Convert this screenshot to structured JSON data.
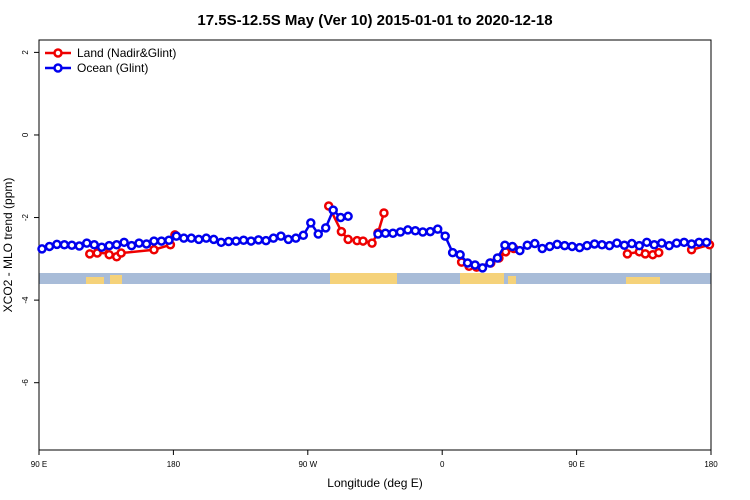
{
  "chart_data": {
    "type": "line",
    "title": "17.5S-12.5S May (Ver 10)   2015-01-01 to 2020-12-18",
    "x_label": "Longitude (deg E)",
    "y_label": "XCO2 - MLO trend (ppm)",
    "xlim": [
      90,
      540
    ],
    "ylim": [
      -7.63,
      2.3
    ],
    "xticks": [
      {
        "value": 90,
        "label": "90 E"
      },
      180,
      {
        "value": 270,
        "label": "90 W"
      },
      {
        "value": 360,
        "label": "0"
      },
      {
        "value": 450,
        "label": "90 E"
      },
      {
        "value": 540,
        "label": "180"
      }
    ],
    "yticks": [
      -6,
      -4,
      -2,
      0,
      2
    ],
    "grid": false,
    "legend": "top-left",
    "series": [
      {
        "name": "Land (Nadir&Glint)",
        "color": "#ee0000",
        "x": [
          124,
          129,
          133,
          137,
          142,
          145,
          167,
          178,
          181,
          230,
          284,
          292.5,
          297,
          303,
          307,
          313,
          317,
          321,
          340,
          373,
          378,
          383,
          392.5,
          398,
          402.5,
          408,
          450,
          484,
          492,
          496,
          501,
          505,
          515,
          527,
          539
        ],
        "values": [
          -2.88,
          -2.86,
          -2.78,
          -2.9,
          -2.95,
          -2.86,
          -2.78,
          -2.66,
          -2.42,
          null,
          -1.72,
          -2.34,
          -2.53,
          -2.56,
          -2.57,
          -2.62,
          -2.37,
          -1.89,
          null,
          -3.08,
          -3.18,
          -3.2,
          -3.1,
          -2.98,
          -2.83,
          -2.75,
          null,
          -2.88,
          -2.83,
          -2.88,
          -2.9,
          -2.85,
          null,
          -2.78,
          -2.66
        ]
      },
      {
        "name": "Ocean (Glint)",
        "color": "#0000ee",
        "x": [
          92,
          97,
          102,
          107,
          112,
          117,
          122,
          127,
          132,
          137,
          142,
          147,
          152,
          157,
          162,
          167,
          172,
          177,
          182,
          187,
          192,
          197,
          202,
          207,
          212,
          217,
          222,
          227,
          232,
          237,
          242,
          247,
          252,
          257,
          262,
          267,
          272,
          277,
          282,
          287,
          292,
          297,
          307,
          317,
          322,
          327,
          332,
          337,
          342,
          347,
          352,
          357,
          362,
          367,
          372,
          377,
          382,
          387,
          392,
          397,
          402,
          407,
          412,
          417,
          422,
          427,
          432,
          437,
          442,
          447,
          452,
          457,
          462,
          467,
          472,
          477,
          482,
          487,
          492,
          497,
          502,
          507,
          512,
          517,
          522,
          527,
          532,
          537
        ],
        "values": [
          -2.76,
          -2.7,
          -2.65,
          -2.66,
          -2.67,
          -2.69,
          -2.62,
          -2.66,
          -2.72,
          -2.68,
          -2.66,
          -2.6,
          -2.68,
          -2.62,
          -2.64,
          -2.57,
          -2.57,
          -2.55,
          -2.45,
          -2.5,
          -2.5,
          -2.53,
          -2.5,
          -2.53,
          -2.6,
          -2.58,
          -2.57,
          -2.55,
          -2.57,
          -2.54,
          -2.56,
          -2.5,
          -2.45,
          -2.53,
          -2.5,
          -2.43,
          -2.13,
          -2.4,
          -2.25,
          -1.82,
          -2.0,
          -1.97,
          null,
          -2.4,
          -2.38,
          -2.38,
          -2.35,
          -2.3,
          -2.32,
          -2.35,
          -2.34,
          -2.28,
          -2.45,
          -2.85,
          -2.9,
          -3.1,
          -3.15,
          -3.22,
          -3.1,
          -2.98,
          -2.67,
          -2.7,
          -2.8,
          -2.67,
          -2.63,
          -2.75,
          -2.7,
          -2.65,
          -2.68,
          -2.7,
          -2.73,
          -2.68,
          -2.64,
          -2.66,
          -2.68,
          -2.62,
          -2.67,
          -2.63,
          -2.68,
          -2.6,
          -2.66,
          -2.62,
          -2.68,
          -2.62,
          -2.6,
          -2.64,
          -2.6,
          -2.6
        ]
      }
    ]
  }
}
